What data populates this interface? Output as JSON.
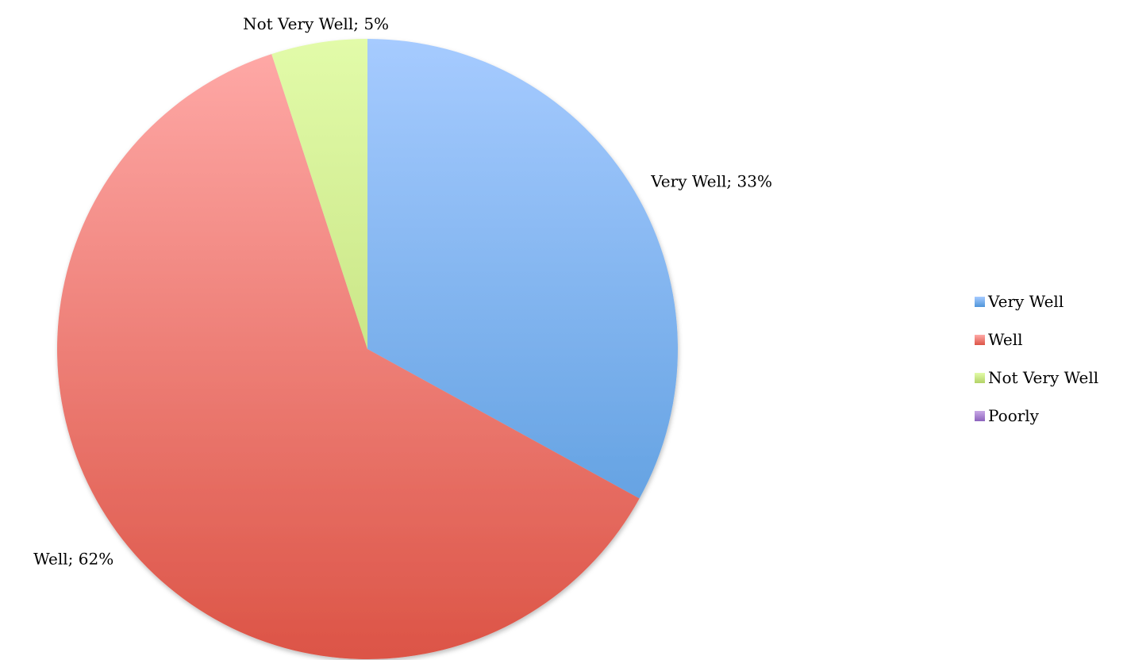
{
  "chart_data": {
    "type": "pie",
    "title": "",
    "start_angle_deg": 0,
    "direction": "clockwise",
    "slices": [
      {
        "name": "Very Well",
        "value": 33,
        "label": "Very Well; 33%",
        "color_light": "#a6cbff",
        "color_dark": "#4f95d9"
      },
      {
        "name": "Well",
        "value": 62,
        "label": "Well; 62%",
        "color_light": "#ffaaa8",
        "color_dark": "#dc5446"
      },
      {
        "name": "Not Very Well",
        "value": 5,
        "label": "Not Very Well; 5%",
        "color_light": "#e2fba9",
        "color_dark": "#b3d267"
      },
      {
        "name": "Poorly",
        "value": 0,
        "label": "",
        "color_light": "#c9a9e6",
        "color_dark": "#8d63bd"
      }
    ],
    "legend": {
      "position": "right",
      "items": [
        "Very Well",
        "Well",
        "Not Very Well",
        "Poorly"
      ]
    }
  }
}
